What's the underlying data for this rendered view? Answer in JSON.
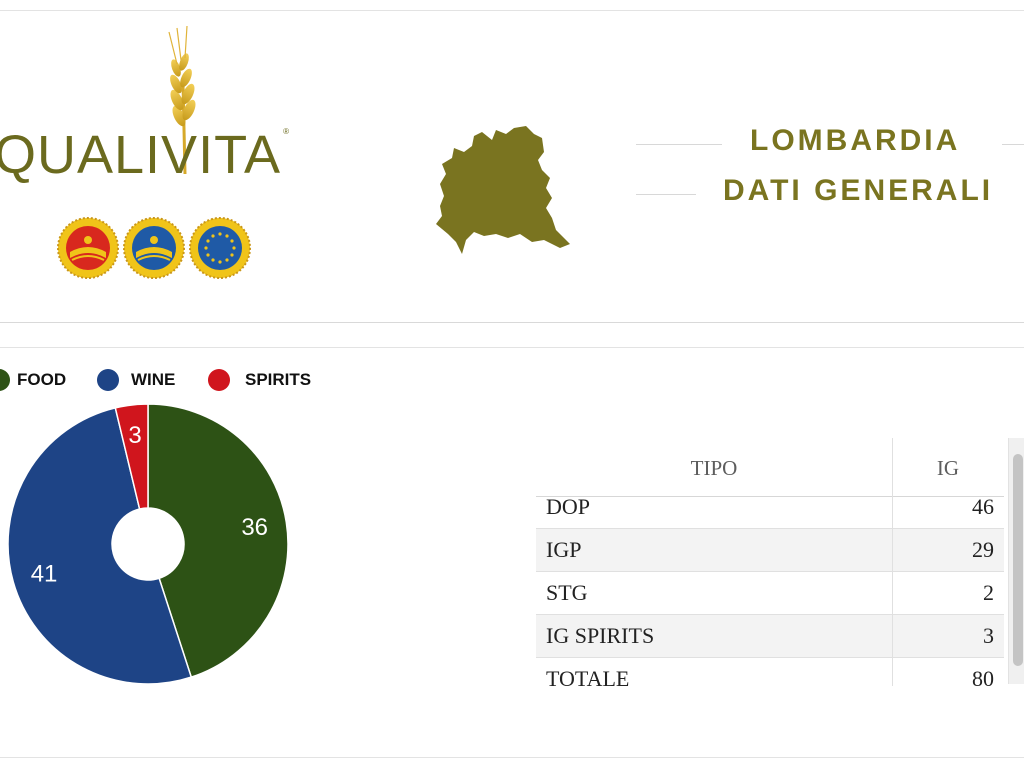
{
  "brand": {
    "logo_text": "QUALIVITA",
    "registered_mark": "®",
    "seal_icons": [
      "dop-seal-icon",
      "igp-seal-icon",
      "stg-seal-icon"
    ]
  },
  "header": {
    "region": "LOMBARDIA",
    "subtitle": "DATI GENERALI"
  },
  "colors": {
    "brand_olive": "#7a7420",
    "food": "#2d5215",
    "wine": "#1e4486",
    "spirits": "#d0151d"
  },
  "chart_data": {
    "type": "pie",
    "donut": true,
    "legend_position": "top-left",
    "categories": [
      "FOOD",
      "WINE",
      "SPIRITS"
    ],
    "values": [
      36,
      41,
      3
    ],
    "colors": [
      "#2d5215",
      "#1e4486",
      "#d0151d"
    ],
    "data_labels": [
      "36",
      "41",
      "3"
    ]
  },
  "table": {
    "headers": [
      "TIPO",
      "IG"
    ],
    "rows": [
      {
        "tipo": "DOP",
        "ig": "46"
      },
      {
        "tipo": "IGP",
        "ig": "29"
      },
      {
        "tipo": "STG",
        "ig": "2"
      },
      {
        "tipo": "IG SPIRITS",
        "ig": "3"
      },
      {
        "tipo": "TOTALE",
        "ig": "80"
      }
    ]
  }
}
